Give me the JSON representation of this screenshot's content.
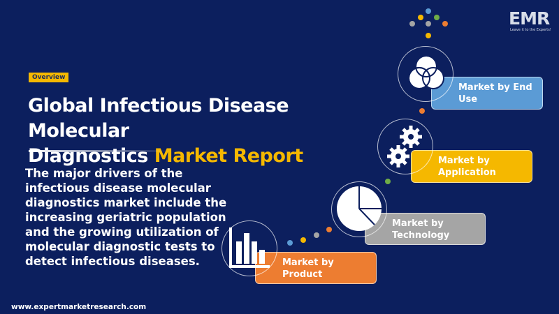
{
  "tag": "Overview",
  "title": {
    "line1": "Global Infectious Disease Molecular",
    "line2_prefix": "Diagnostics ",
    "line2_highlight": "Market Report"
  },
  "description": "The major drivers of the infectious disease molecular diagnostics market include the increasing geriatric population and the growing utilization of molecular diagnostic tests to detect infectious diseases.",
  "website": "www.expertmarketresearch.com",
  "logo": {
    "text": "EMR",
    "tagline": "Leave it to the Experts!"
  },
  "segments": [
    {
      "label": "Market by End Use",
      "icon": "venn-diagram-icon",
      "color": "#5b9bd5"
    },
    {
      "label": "Market by Application",
      "icon": "gears-icon",
      "color": "#f5b800"
    },
    {
      "label": "Market by Technology",
      "icon": "pie-chart-icon",
      "color": "#a5a5a5"
    },
    {
      "label": "Market by Product",
      "icon": "bar-chart-icon",
      "color": "#ed7d31"
    }
  ],
  "colors": {
    "background": "#0c1f5e",
    "accent": "#f5b800"
  }
}
